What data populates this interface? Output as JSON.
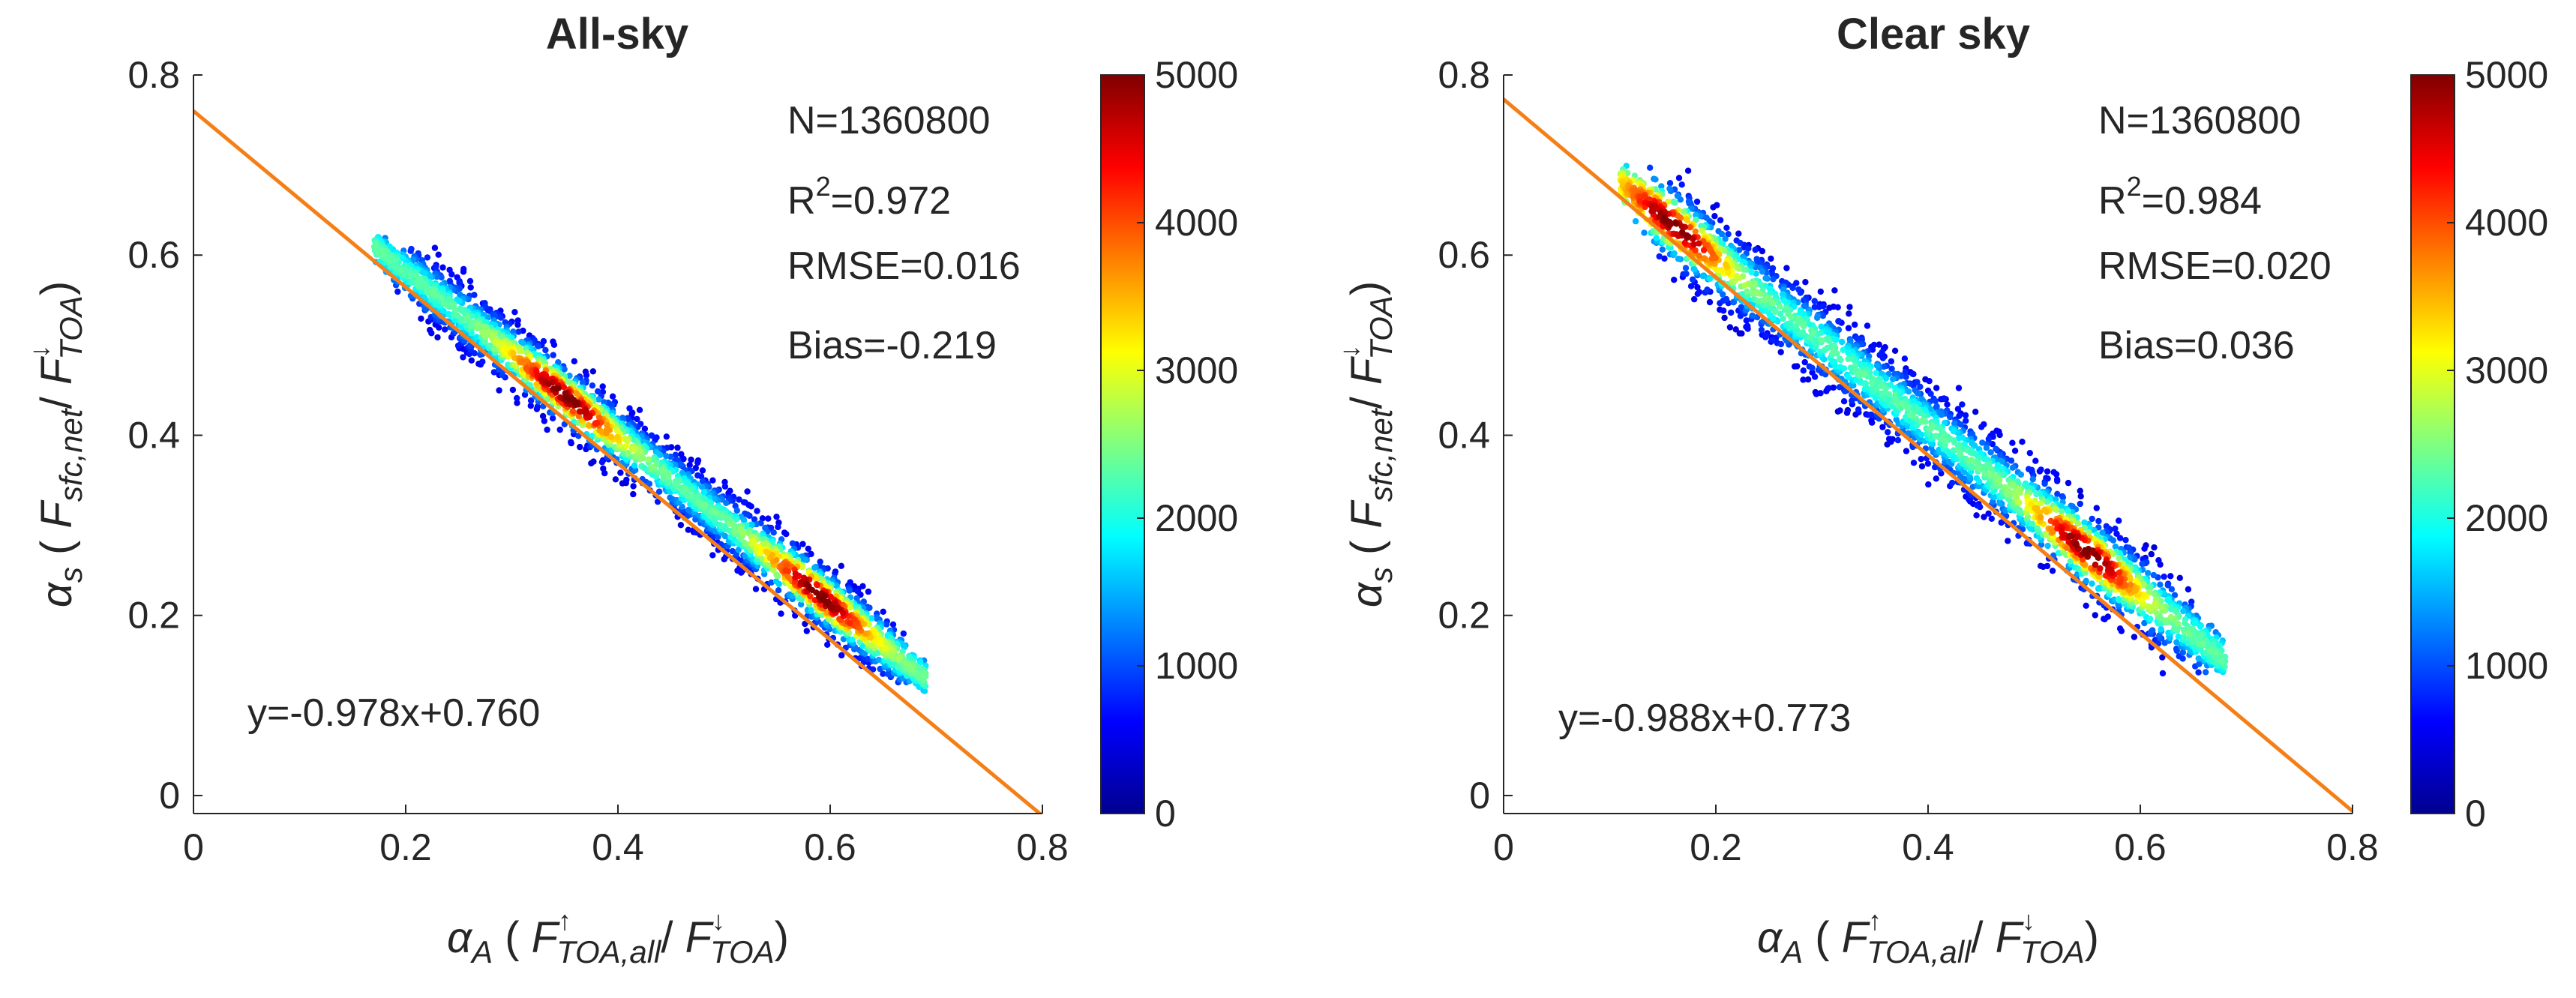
{
  "chart_data": [
    {
      "type": "scatter",
      "title": "All-sky",
      "xlabel": {
        "alpha": "α",
        "alpha_sub": "A",
        "open": " ( ",
        "f1": "F",
        "f1_sup": "↑",
        "f1_sub": "TOA,all",
        "slash": "/ ",
        "f2": "F",
        "f2_sup": "↓",
        "f2_sub": "TOA",
        "close": ")"
      },
      "ylabel": {
        "alpha": "α",
        "alpha_sub": "s",
        "open": " ( ",
        "f1": "F",
        "f1_sub": "sfc,net",
        "slash": "/ ",
        "f2": "F",
        "f2_sup": "↓",
        "f2_sub": "TOA",
        "close": ")"
      },
      "xlim": [
        0,
        0.8
      ],
      "ylim": [
        -0.02,
        0.8
      ],
      "xticks": [
        "0",
        "0.2",
        "0.4",
        "0.6",
        "0.8"
      ],
      "yticks": [
        "0",
        "0.2",
        "0.4",
        "0.6",
        "0.8"
      ],
      "stats": {
        "n": "N=1360800",
        "r2_prefix": "R",
        "r2_sup": "2",
        "r2_value": "=0.972",
        "rmse": "RMSE=0.016",
        "bias": "Bias=-0.219"
      },
      "fit": {
        "slope": -0.978,
        "intercept": 0.76,
        "label": "y=-0.978x+0.760",
        "color": "#f57f17"
      },
      "density_band": {
        "x_start": 0.17,
        "x_end": 0.69,
        "y_start": 0.61,
        "y_end": 0.13,
        "width": 0.06,
        "peaks_at_x": [
          0.35,
          0.59
        ]
      },
      "colorbar": {
        "min": 0,
        "max": 5000,
        "ticks": [
          "0",
          "1000",
          "2000",
          "3000",
          "4000",
          "5000"
        ],
        "colormap": "jet"
      }
    },
    {
      "type": "scatter",
      "title": "Clear sky",
      "xlabel": {
        "alpha": "α",
        "alpha_sub": "A",
        "open": " ( ",
        "f1": "F",
        "f1_sup": "↑",
        "f1_sub": "TOA,all",
        "slash": "/ ",
        "f2": "F",
        "f2_sup": "↓",
        "f2_sub": "TOA",
        "close": ")"
      },
      "ylabel": {
        "alpha": "α",
        "alpha_sub": "s",
        "open": " ( ",
        "f1": "F",
        "f1_sub": "sfc,net",
        "slash": "/ ",
        "f2": "F",
        "f2_sup": "↓",
        "f2_sub": "TOA",
        "close": ")"
      },
      "xlim": [
        0,
        0.8
      ],
      "ylim": [
        -0.02,
        0.8
      ],
      "xticks": [
        "0",
        "0.2",
        "0.4",
        "0.6",
        "0.8"
      ],
      "yticks": [
        "0",
        "0.2",
        "0.4",
        "0.6",
        "0.8"
      ],
      "stats": {
        "n": "N=1360800",
        "r2_prefix": "R",
        "r2_sup": "2",
        "r2_value": "=0.984",
        "rmse": "RMSE=0.020",
        "bias": "Bias=0.036"
      },
      "fit": {
        "slope": -0.988,
        "intercept": 0.773,
        "label": "y=-0.988x+0.773",
        "color": "#f57f17"
      },
      "density_band": {
        "x_start": 0.11,
        "x_end": 0.68,
        "y_start": 0.68,
        "y_end": 0.15,
        "width": 0.075,
        "peaks_at_x": [
          0.16,
          0.55
        ]
      },
      "colorbar": {
        "min": 0,
        "max": 5000,
        "ticks": [
          "0",
          "1000",
          "2000",
          "3000",
          "4000",
          "5000"
        ],
        "colormap": "jet"
      }
    }
  ]
}
